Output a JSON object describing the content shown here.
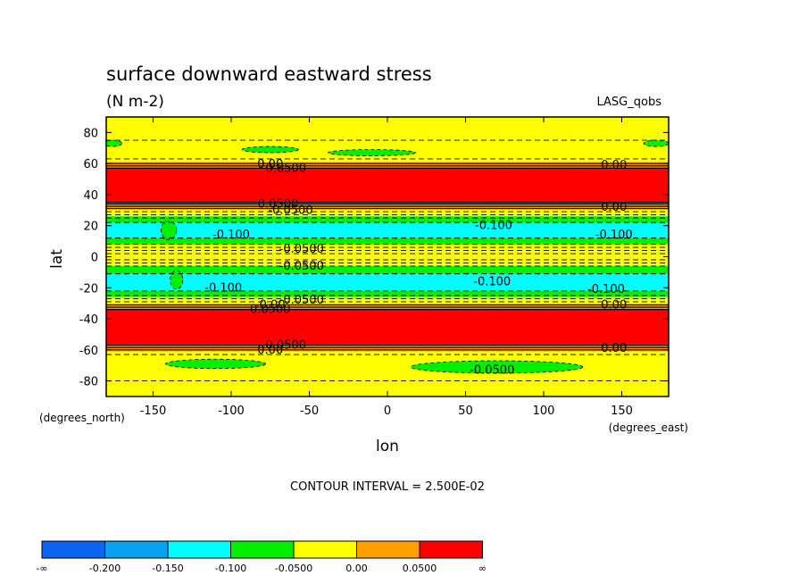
{
  "chart_data": {
    "type": "contour",
    "title": "surface downward eastward stress",
    "units": "(N m-2)",
    "dataset": "LASG_qobs",
    "xlabel": "lon",
    "ylabel": "lat",
    "x_units": "(degrees_east)",
    "y_units": "(degrees_north)",
    "xlim": [
      -180,
      180
    ],
    "ylim": [
      -90,
      90
    ],
    "x_ticks": [
      "-150",
      "-100",
      "-50",
      "0",
      "50",
      "100",
      "150"
    ],
    "y_ticks": [
      "80",
      "60",
      "40",
      "20",
      "0",
      "-20",
      "-40",
      "-60",
      "-80"
    ],
    "contour_interval_text": "CONTOUR INTERVAL = 2.500E-02",
    "colorbar": {
      "labels": [
        "-∞",
        "-0.200",
        "-0.150",
        "-0.100",
        "-0.0500",
        "0.00",
        "0.0500",
        "∞"
      ],
      "colors": [
        "#0a64f0",
        "#0aa0f0",
        "#00ffff",
        "#00f000",
        "#ffff00",
        "#ffa000",
        "#ff0000"
      ]
    },
    "bands": [
      {
        "lat_from": 90,
        "lat_to": 61,
        "color": "#ffff00"
      },
      {
        "lat_from": 61,
        "lat_to": 57,
        "color": "#ffa000"
      },
      {
        "lat_from": 57,
        "lat_to": 35,
        "color": "#ff0000"
      },
      {
        "lat_from": 35,
        "lat_to": 31,
        "color": "#ffa000"
      },
      {
        "lat_from": 31,
        "lat_to": 26,
        "color": "#ffff00"
      },
      {
        "lat_from": 26,
        "lat_to": 22,
        "color": "#00f000"
      },
      {
        "lat_from": 22,
        "lat_to": 12,
        "color": "#00ffff"
      },
      {
        "lat_from": 12,
        "lat_to": 8,
        "color": "#00f000"
      },
      {
        "lat_from": 8,
        "lat_to": -6,
        "color": "#ffff00"
      },
      {
        "lat_from": -6,
        "lat_to": -11,
        "color": "#00f000"
      },
      {
        "lat_from": -11,
        "lat_to": -22,
        "color": "#00ffff"
      },
      {
        "lat_from": -22,
        "lat_to": -26,
        "color": "#00f000"
      },
      {
        "lat_from": -26,
        "lat_to": -31,
        "color": "#ffff00"
      },
      {
        "lat_from": -31,
        "lat_to": -34,
        "color": "#ffa000"
      },
      {
        "lat_from": -34,
        "lat_to": -57,
        "color": "#ff0000"
      },
      {
        "lat_from": -57,
        "lat_to": -61,
        "color": "#ffa000"
      },
      {
        "lat_from": -61,
        "lat_to": -90,
        "color": "#ffff00"
      }
    ],
    "patches": [
      {
        "lon": -75,
        "lat": 69,
        "rlon": 18,
        "rlat": 2,
        "color": "#00f000"
      },
      {
        "lon": -10,
        "lat": 67,
        "rlon": 28,
        "rlat": 2,
        "color": "#00f000"
      },
      {
        "lon": -176,
        "lat": 73,
        "rlon": 6,
        "rlat": 2,
        "color": "#00f000"
      },
      {
        "lon": 172,
        "lat": 73,
        "rlon": 8,
        "rlat": 2,
        "color": "#00f000"
      },
      {
        "lon": -110,
        "lat": -69,
        "rlon": 32,
        "rlat": 3,
        "color": "#00f000"
      },
      {
        "lon": 70,
        "lat": -71,
        "rlon": 55,
        "rlat": 4,
        "color": "#00f000"
      },
      {
        "lon": -140,
        "lat": 17,
        "rlon": 5,
        "rlat": 6,
        "color": "#00f000"
      },
      {
        "lon": -135,
        "lat": -15,
        "rlon": 4,
        "rlat": 6,
        "color": "#00f000"
      }
    ],
    "contour_lines": [
      {
        "lat": 75,
        "style": "dash"
      },
      {
        "lat": 63,
        "style": "dash"
      },
      {
        "lat": 60,
        "style": "solid"
      },
      {
        "lat": 58.5,
        "style": "solid"
      },
      {
        "lat": 57,
        "style": "solid"
      },
      {
        "lat": 35,
        "style": "solid"
      },
      {
        "lat": 34,
        "style": "solid"
      },
      {
        "lat": 32.5,
        "style": "solid"
      },
      {
        "lat": 31,
        "style": "solid"
      },
      {
        "lat": 29,
        "style": "dash"
      },
      {
        "lat": 27,
        "style": "dash"
      },
      {
        "lat": 25,
        "style": "dash"
      },
      {
        "lat": 22,
        "style": "dash"
      },
      {
        "lat": 12,
        "style": "dash"
      },
      {
        "lat": 8,
        "style": "dash"
      },
      {
        "lat": 6,
        "style": "dash"
      },
      {
        "lat": 4,
        "style": "dash"
      },
      {
        "lat": 2,
        "style": "dash"
      },
      {
        "lat": -2,
        "style": "dash"
      },
      {
        "lat": -4,
        "style": "dash"
      },
      {
        "lat": -6,
        "style": "dash"
      },
      {
        "lat": -11,
        "style": "dash"
      },
      {
        "lat": -22,
        "style": "dash"
      },
      {
        "lat": -25,
        "style": "dash"
      },
      {
        "lat": -27,
        "style": "dash"
      },
      {
        "lat": -29,
        "style": "dash"
      },
      {
        "lat": -31,
        "style": "solid"
      },
      {
        "lat": -32.5,
        "style": "solid"
      },
      {
        "lat": -34,
        "style": "solid"
      },
      {
        "lat": -57,
        "style": "solid"
      },
      {
        "lat": -58.5,
        "style": "solid"
      },
      {
        "lat": -60,
        "style": "solid"
      },
      {
        "lat": -63,
        "style": "dash"
      },
      {
        "lat": -80,
        "style": "dash"
      }
    ],
    "contour_labels": [
      {
        "lon": -75,
        "lat": 59.5,
        "text": "0.00"
      },
      {
        "lon": -65,
        "lat": 57,
        "text": "0.0500"
      },
      {
        "lon": 145,
        "lat": 59,
        "text": "0.00"
      },
      {
        "lon": -70,
        "lat": 34,
        "text": "0.0500"
      },
      {
        "lon": -62,
        "lat": 30,
        "text": "-0.0500"
      },
      {
        "lon": 145,
        "lat": 32,
        "text": "0.00"
      },
      {
        "lon": 68,
        "lat": 20,
        "text": "-0.100"
      },
      {
        "lon": -100,
        "lat": 14,
        "text": "-0.100"
      },
      {
        "lon": 145,
        "lat": 14,
        "text": "-0.100"
      },
      {
        "lon": -55,
        "lat": 5,
        "text": "-0.0500"
      },
      {
        "lon": -55,
        "lat": -6,
        "text": "-0.0500"
      },
      {
        "lon": -105,
        "lat": -20,
        "text": "-0.100"
      },
      {
        "lon": 67,
        "lat": -16,
        "text": "-0.100"
      },
      {
        "lon": 140,
        "lat": -21,
        "text": "-0.100"
      },
      {
        "lon": -55,
        "lat": -28,
        "text": "-0.0500"
      },
      {
        "lon": -75,
        "lat": -31,
        "text": "-0.00"
      },
      {
        "lon": -75,
        "lat": -34,
        "text": "0.0500"
      },
      {
        "lon": 145,
        "lat": -31,
        "text": "0.00"
      },
      {
        "lon": -65,
        "lat": -57,
        "text": "0.0500"
      },
      {
        "lon": -75,
        "lat": -60,
        "text": "0.00"
      },
      {
        "lon": 145,
        "lat": -59,
        "text": "0.00"
      },
      {
        "lon": 67,
        "lat": -73,
        "text": "-0.0500"
      }
    ]
  }
}
